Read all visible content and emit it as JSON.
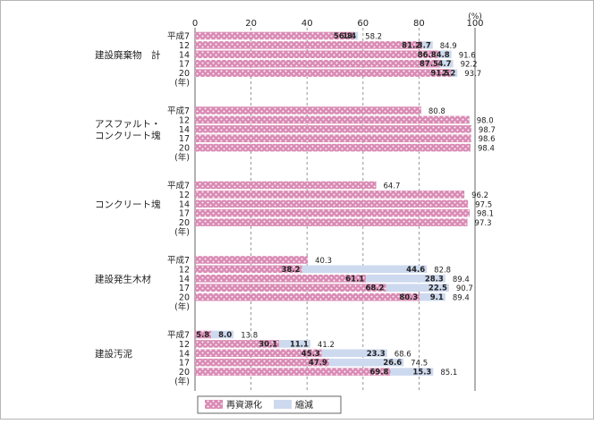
{
  "chart_data": {
    "type": "bar",
    "orientation": "horizontal",
    "stacked": true,
    "xlim": [
      0,
      100
    ],
    "x_ticks": [
      "0",
      "20",
      "40",
      "60",
      "80",
      "100"
    ],
    "unit": "(%)",
    "year_unit": "(年)",
    "colors": {
      "recycle": "#d98ab4",
      "reduce": "#cdd9ee"
    },
    "legend": [
      {
        "key": "recycle",
        "label": "再資源化"
      },
      {
        "key": "reduce",
        "label": "縮減"
      }
    ],
    "groups": [
      {
        "label_lines": [
          "建設廃棄物　計"
        ],
        "rows": [
          {
            "year": "平成7",
            "recycle": 56.8,
            "reduce": 1.4,
            "total": 58.2
          },
          {
            "year": "12",
            "recycle": 81.2,
            "reduce": 3.7,
            "total": 84.9
          },
          {
            "year": "14",
            "recycle": 86.8,
            "reduce": 4.8,
            "total": 91.6
          },
          {
            "year": "17",
            "recycle": 87.5,
            "reduce": 4.7,
            "total": 92.2
          },
          {
            "year": "20",
            "recycle": 91.5,
            "reduce": 2.2,
            "total": 93.7
          }
        ]
      },
      {
        "label_lines": [
          "アスファルト・",
          "コンクリート塊"
        ],
        "rows": [
          {
            "year": "平成7",
            "recycle": 80.8,
            "total": 80.8
          },
          {
            "year": "12",
            "recycle": 98.0,
            "total": 98.0
          },
          {
            "year": "14",
            "recycle": 98.7,
            "total": 98.7
          },
          {
            "year": "17",
            "recycle": 98.6,
            "total": 98.6
          },
          {
            "year": "20",
            "recycle": 98.4,
            "total": 98.4
          }
        ]
      },
      {
        "label_lines": [
          "コンクリート塊"
        ],
        "rows": [
          {
            "year": "平成7",
            "recycle": 64.7,
            "total": 64.7
          },
          {
            "year": "12",
            "recycle": 96.2,
            "total": 96.2
          },
          {
            "year": "14",
            "recycle": 97.5,
            "total": 97.5
          },
          {
            "year": "17",
            "recycle": 98.1,
            "total": 98.1
          },
          {
            "year": "20",
            "recycle": 97.3,
            "total": 97.3
          }
        ]
      },
      {
        "label_lines": [
          "建設発生木材"
        ],
        "rows": [
          {
            "year": "平成7",
            "recycle": 40.3,
            "total": 40.3
          },
          {
            "year": "12",
            "recycle": 38.2,
            "reduce": 44.6,
            "total": 82.8
          },
          {
            "year": "14",
            "recycle": 61.1,
            "reduce": 28.3,
            "total": 89.4
          },
          {
            "year": "17",
            "recycle": 68.2,
            "reduce": 22.5,
            "total": 90.7
          },
          {
            "year": "20",
            "recycle": 80.3,
            "reduce": 9.1,
            "total": 89.4
          }
        ]
      },
      {
        "label_lines": [
          "建設汚泥"
        ],
        "rows": [
          {
            "year": "平成7",
            "recycle": 5.8,
            "reduce": 8.0,
            "total": 13.8
          },
          {
            "year": "12",
            "recycle": 30.1,
            "reduce": 11.1,
            "total": 41.2
          },
          {
            "year": "14",
            "recycle": 45.3,
            "reduce": 23.3,
            "total": 68.6
          },
          {
            "year": "17",
            "recycle": 47.9,
            "reduce": 26.6,
            "total": 74.5
          },
          {
            "year": "20",
            "recycle": 69.8,
            "reduce": 15.3,
            "total": 85.1
          }
        ]
      }
    ]
  }
}
